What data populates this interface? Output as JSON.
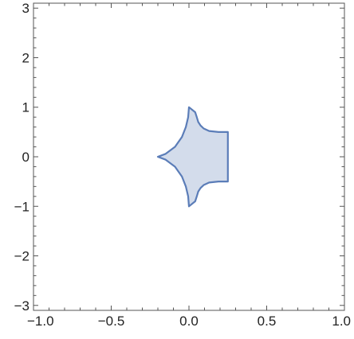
{
  "chart_data": {
    "type": "area",
    "title": "",
    "xlabel": "",
    "ylabel": "",
    "xlim": [
      -1.0,
      1.0
    ],
    "ylim": [
      -3.1,
      3.1
    ],
    "x_ticks": [
      -1.0,
      -0.5,
      0.0,
      0.5,
      1.0
    ],
    "x_tick_labels": [
      "−1.0",
      "−0.5",
      "0.0",
      "0.5",
      "1.0"
    ],
    "y_ticks": [
      -3,
      -2,
      -1,
      0,
      1,
      2,
      3
    ],
    "y_tick_labels": [
      "−3",
      "−2",
      "−1",
      "0",
      "1",
      "2",
      "3"
    ],
    "grid": false,
    "series": [
      {
        "fill_color": "#d3dceb",
        "line_color": "#5b7db8",
        "x": [
          0.25,
          0.25,
          0.19,
          0.13,
          0.095,
          0.075,
          0.06,
          0.05,
          0.04,
          0.0,
          -0.005,
          -0.02,
          -0.045,
          -0.09,
          -0.15,
          -0.2,
          -0.15,
          -0.09,
          -0.045,
          -0.02,
          -0.005,
          0.0,
          0.04,
          0.05,
          0.06,
          0.075,
          0.095,
          0.13,
          0.19,
          0.25
        ],
        "y": [
          0.5,
          -0.5,
          -0.5,
          -0.52,
          -0.57,
          -0.63,
          -0.7,
          -0.8,
          -0.9,
          -1.0,
          -0.8,
          -0.6,
          -0.4,
          -0.2,
          -0.06,
          0.0,
          0.06,
          0.2,
          0.4,
          0.6,
          0.8,
          1.0,
          0.9,
          0.8,
          0.7,
          0.63,
          0.57,
          0.52,
          0.5,
          0.5
        ]
      }
    ]
  }
}
